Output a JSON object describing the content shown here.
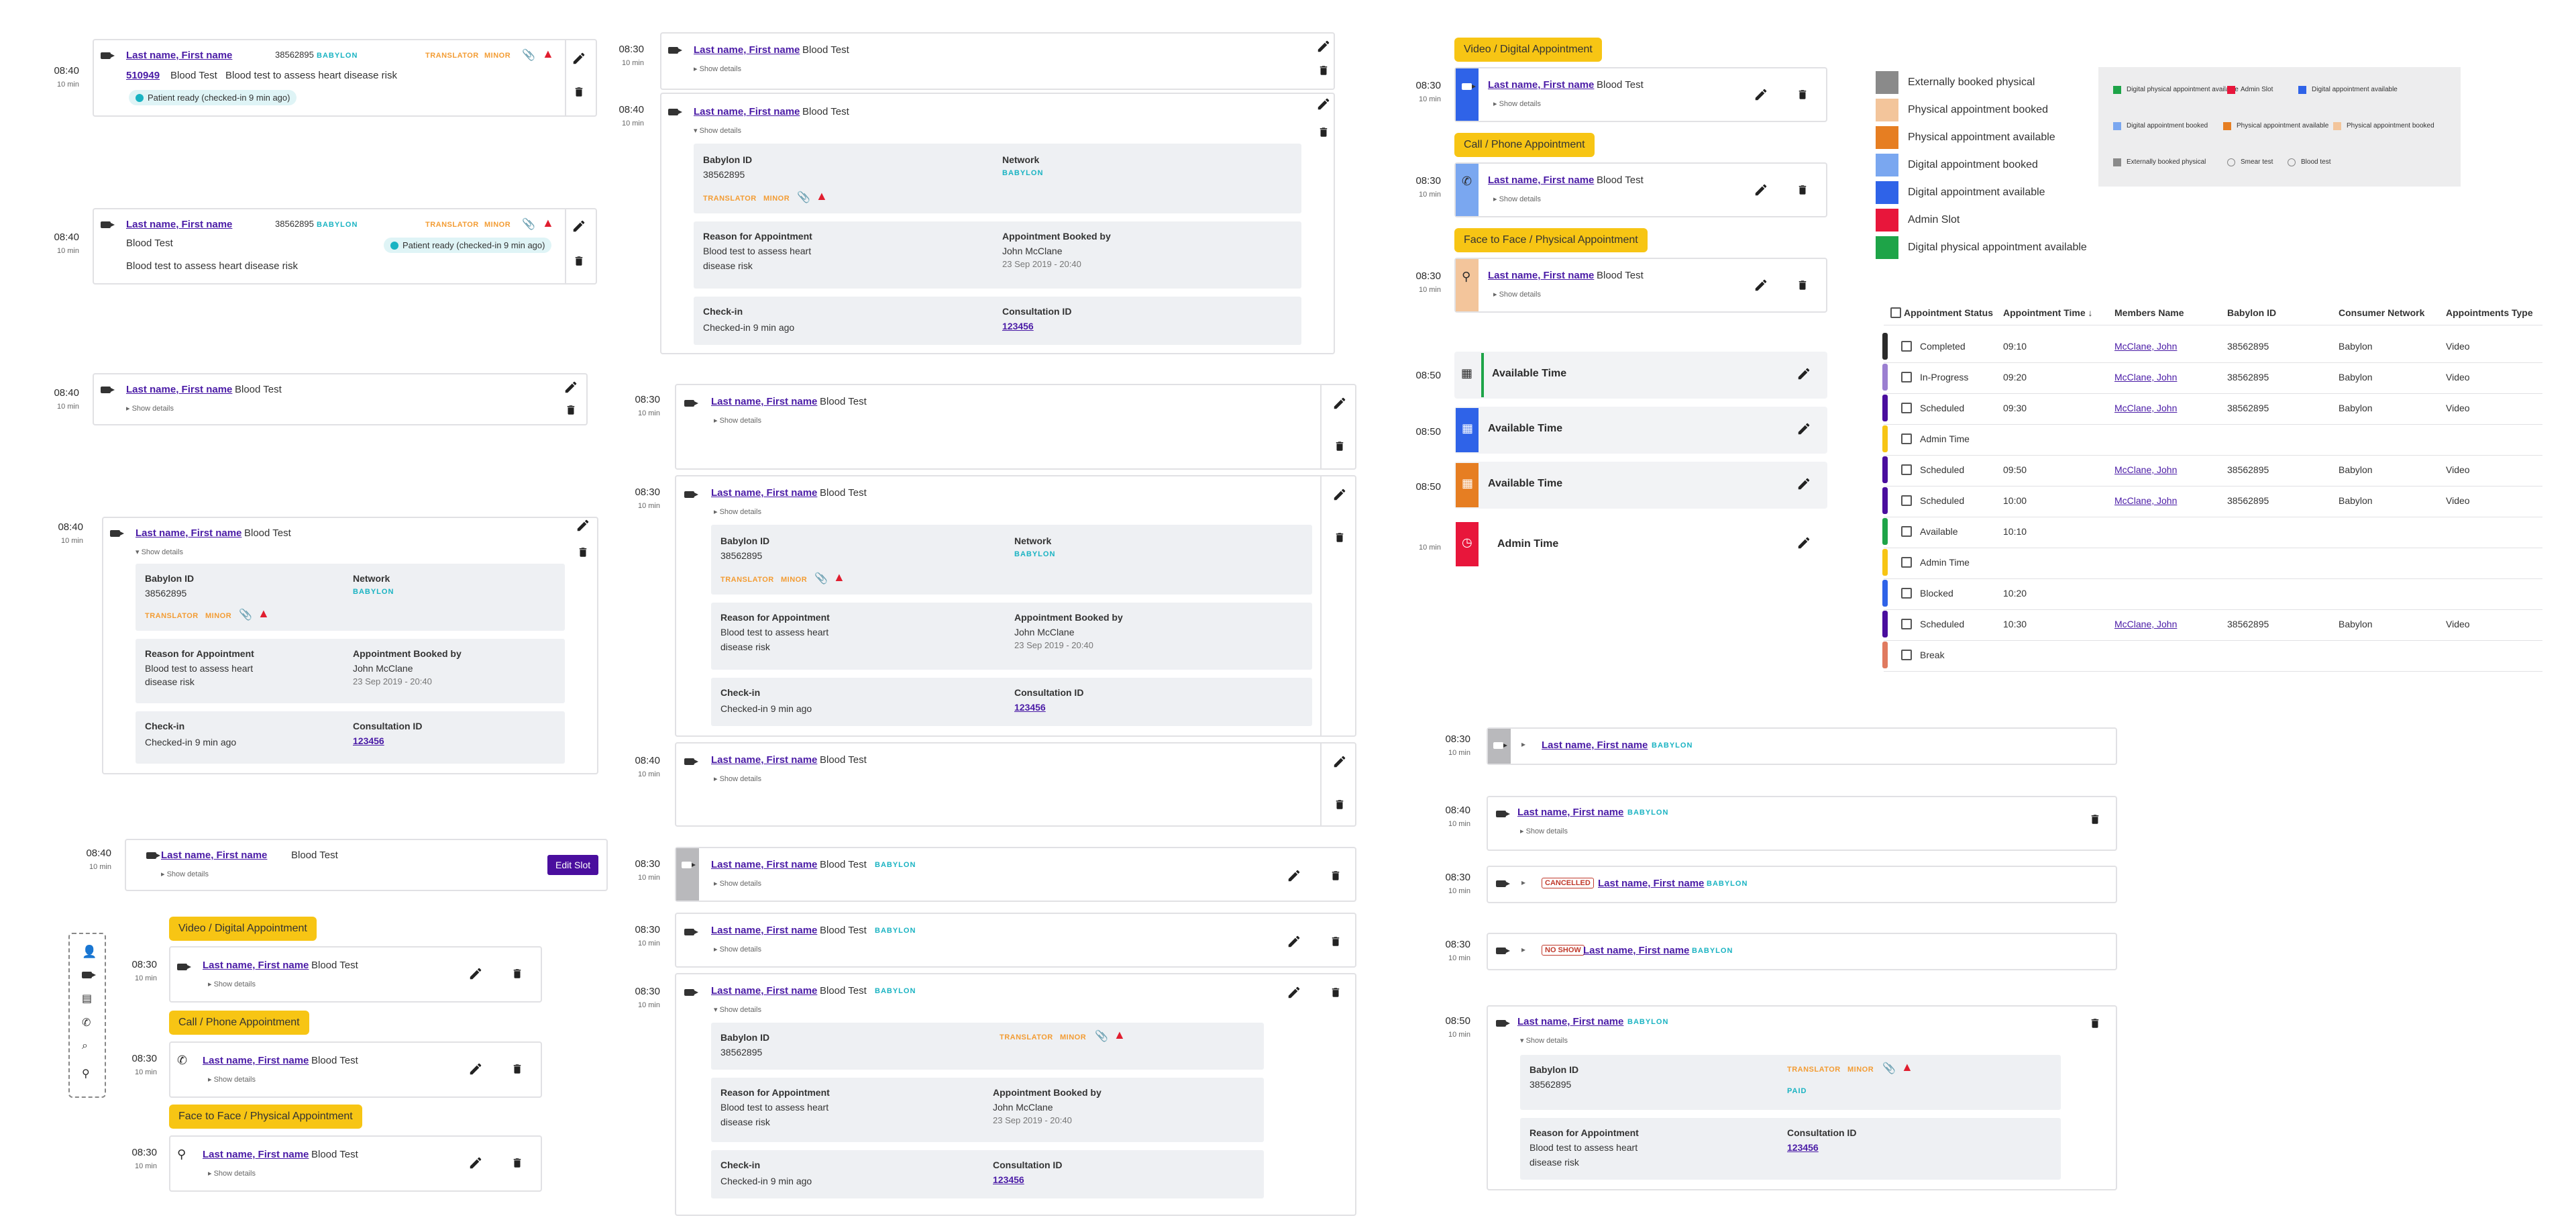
{
  "common": {
    "name": "Last name, First name",
    "blood_test": "Blood Test",
    "show_details": "Show details",
    "babylon": "BABYLON",
    "translator": "TRANSLATOR",
    "minor": "MINOR",
    "paid": "PAID",
    "ten_min": "10 min",
    "t0830": "08:30",
    "t0840": "08:40",
    "t0850": "08:50",
    "babylon_id_label": "Babylon ID",
    "babylon_id": "38562895",
    "network_label": "Network",
    "reason_label": "Reason for Appointment",
    "reason_line1": "Blood test to assess heart",
    "reason_line2": "disease risk",
    "booked_label": "Appointment Booked by",
    "booked_by": "John McClane",
    "booked_date": "23 Sep 2019 - 20:40",
    "checkin_label": "Check-in",
    "checkin_val": "Checked-in 9 min ago",
    "consult_label": "Consultation ID",
    "consult_id": "123456",
    "patient_ready": "Patient ready",
    "patient_ready_sub": "(checked-in 9 min ago)",
    "code": "510949",
    "reason_full": "Blood test to assess heart disease risk",
    "edit_slot": "Edit Slot",
    "cancelled": "CANCELLED",
    "no_show": "NO SHOW"
  },
  "sections": {
    "video": "Video / Digital Appointment",
    "phone": "Call / Phone Appointment",
    "face": "Face to Face / Physical Appointment",
    "available_time": "Available Time",
    "admin_time": "Admin Time"
  },
  "legend": {
    "items": [
      {
        "label": "Externally booked physical",
        "color": "#8a8a8a"
      },
      {
        "label": "Physical appointment booked",
        "color": "#f3c59b"
      },
      {
        "label": "Physical appointment available",
        "color": "#e67e22"
      },
      {
        "label": "Digital appointment booked",
        "color": "#7aa7f0"
      },
      {
        "label": "Digital appointment available",
        "color": "#2f63e8"
      },
      {
        "label": "Admin Slot",
        "color": "#e8163b"
      },
      {
        "label": "Digital physical appointment available",
        "color": "#1ea448"
      }
    ],
    "mini": [
      {
        "label": "Digital physical appointment available",
        "color": "#1ea448"
      },
      {
        "label": "Admin Slot",
        "color": "#e8163b"
      },
      {
        "label": "Digital appointment available",
        "color": "#2f63e8"
      },
      {
        "label": "Digital appointment booked",
        "color": "#7aa7f0"
      },
      {
        "label": "Physical appointment available",
        "color": "#e67e22"
      },
      {
        "label": "Physical appointment booked",
        "color": "#f3c59b"
      },
      {
        "label": "Externally booked physical",
        "color": "#8a8a8a"
      },
      {
        "label": "Smear test",
        "color": ""
      },
      {
        "label": "Blood test",
        "color": ""
      }
    ]
  },
  "table": {
    "headers": [
      "Appointment Status",
      "Appointment Time",
      "Members Name",
      "Babylon ID",
      "Consumer Network",
      "Appointments Type"
    ],
    "rows": [
      {
        "status": "Completed",
        "time": "09:10",
        "member": "McClane, John",
        "id": "38562895",
        "network": "Babylon",
        "type": "Video",
        "color": "#2b2b2b"
      },
      {
        "status": "In-Progress",
        "time": "09:20",
        "member": "McClane, John",
        "id": "38562895",
        "network": "Babylon",
        "type": "Video",
        "color": "#9b7fd1"
      },
      {
        "status": "Scheduled",
        "time": "09:30",
        "member": "McClane, John",
        "id": "38562895",
        "network": "Babylon",
        "type": "Video",
        "color": "#4a0e9e"
      },
      {
        "status": "Admin Time",
        "time": "",
        "member": "",
        "id": "",
        "network": "",
        "type": "",
        "color": "#f7c514"
      },
      {
        "status": "Scheduled",
        "time": "09:50",
        "member": "McClane, John",
        "id": "38562895",
        "network": "Babylon",
        "type": "Video",
        "color": "#4a0e9e"
      },
      {
        "status": "Scheduled",
        "time": "10:00",
        "member": "McClane, John",
        "id": "38562895",
        "network": "Babylon",
        "type": "Video",
        "color": "#4a0e9e"
      },
      {
        "status": "Available",
        "time": "10:10",
        "member": "",
        "id": "",
        "network": "",
        "type": "",
        "color": "#1ea448"
      },
      {
        "status": "Admin Time",
        "time": "",
        "member": "",
        "id": "",
        "network": "",
        "type": "",
        "color": "#f7c514"
      },
      {
        "status": "Blocked",
        "time": "10:20",
        "member": "",
        "id": "",
        "network": "",
        "type": "",
        "color": "#2f63e8"
      },
      {
        "status": "Scheduled",
        "time": "10:30",
        "member": "McClane, John",
        "id": "38562895",
        "network": "Babylon",
        "type": "Video",
        "color": "#4a0e9e"
      },
      {
        "status": "Break",
        "time": "",
        "member": "",
        "id": "",
        "network": "",
        "type": "",
        "color": "#e07a5f"
      }
    ]
  }
}
